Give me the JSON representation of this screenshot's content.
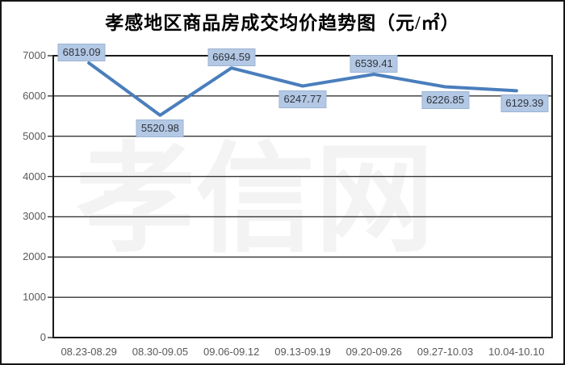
{
  "title": "孝感地区商品房成交均价趋势图（元/㎡）",
  "watermark": "孝信网",
  "chart_data": {
    "type": "line",
    "title": "孝感地区商品房成交均价趋势图（元/㎡）",
    "categories": [
      "08.23-08.29",
      "08.30-09.05",
      "09.06-09.12",
      "09.13-09.19",
      "09.20-09.26",
      "09.27-10.03",
      "10.04-10.10"
    ],
    "values": [
      6819.09,
      5520.98,
      6694.59,
      6247.77,
      6539.41,
      6226.85,
      6129.39
    ],
    "point_labels": [
      "6819.09",
      "5520.98",
      "6694.59",
      "6247.77",
      "6539.41",
      "6226.85",
      "6129.39"
    ],
    "label_positions": [
      "above",
      "below",
      "above",
      "below",
      "above",
      "below",
      "below"
    ],
    "label_x_offsets": [
      -9,
      0,
      0,
      0,
      0,
      0,
      10
    ],
    "xlabel": "",
    "ylabel": "",
    "ylim": [
      0,
      7000
    ],
    "yticks": [
      0,
      1000,
      2000,
      3000,
      4000,
      5000,
      6000,
      7000
    ],
    "grid": "horizontal",
    "legend": "none",
    "colors": {
      "line": "#4a7ebc",
      "label_bg": "#b3c8e4",
      "label_border": "#9db4d4",
      "label_text": "#30343c",
      "grid": "#363636",
      "plot_border": "#1a1a1a",
      "axis_text": "#595959",
      "watermark": "#f3f3f3"
    }
  }
}
